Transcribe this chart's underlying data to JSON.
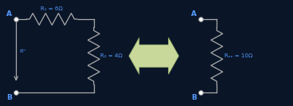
{
  "bg_color": "#0a1628",
  "circuit_color": "#aaaaaa",
  "node_color": "#ffffff",
  "node_edge_color": "#999999",
  "label_color": "#5599ff",
  "arrow_fill_color": "#c8d89a",
  "arrow_edge_color": "#a0b870",
  "R1_label": "R₁ = 6Ω",
  "R2_label": "R₂ = 4Ω",
  "Req_label": "Rₑₑ = 10Ω",
  "Rin_label": "Rᴵⁿ",
  "node_A_label": "A",
  "node_B_label": "B",
  "figsize": [
    3.68,
    1.33
  ],
  "dpi": 100,
  "xlim": [
    0,
    10
  ],
  "ylim": [
    0,
    3.6
  ]
}
